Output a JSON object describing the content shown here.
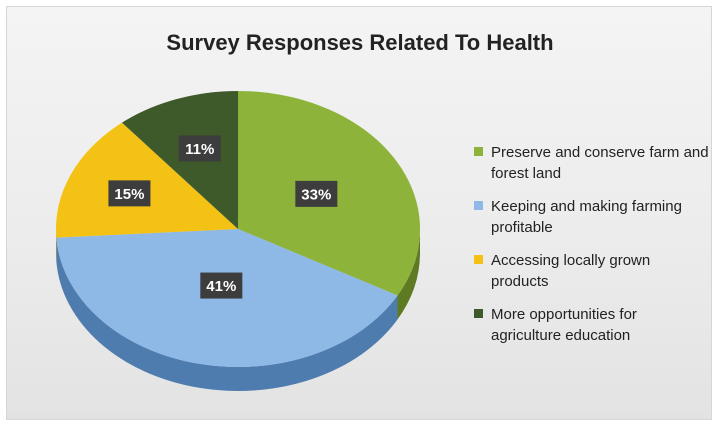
{
  "chart_data": {
    "type": "pie",
    "title": "Survey Responses Related To Health",
    "categories": [
      "Preserve and conserve farm and forest land",
      "Keeping and making farming profitable",
      "Accessing locally grown products",
      "More opportunities for agriculture education"
    ],
    "values": [
      33,
      41,
      15,
      11
    ],
    "data_labels": [
      "33%",
      "41%",
      "15%",
      "11%"
    ],
    "colors": [
      "#8db33a",
      "#8eb8e6",
      "#f3c214",
      "#3f5a2a"
    ],
    "side_colors": [
      "#5e7a22",
      "#4f7cae",
      "#b88f0a",
      "#273a18"
    ],
    "legend_position": "right"
  }
}
